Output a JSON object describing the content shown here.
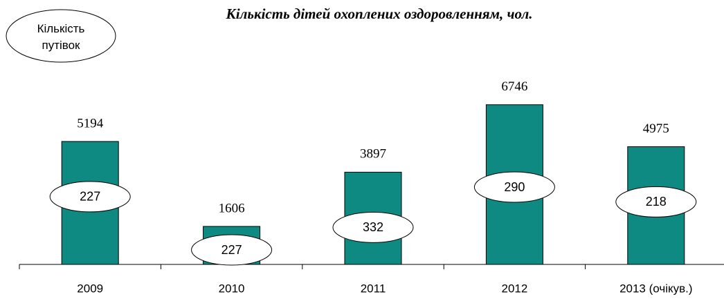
{
  "chart_data": {
    "type": "bar",
    "title": "Кількість дітей охоплених оздоровленням, чол.",
    "categories": [
      "2009",
      "2010",
      "2011",
      "2012",
      "2013 (очікув.)"
    ],
    "series": [
      {
        "color": "#0e8a82",
        "values": [
          5194,
          1606,
          3897,
          6746,
          4975
        ]
      },
      {
        "name": "Кількість путівок",
        "color": "#ffffff",
        "values": [
          227,
          227,
          332,
          290,
          218
        ]
      }
    ],
    "ylim": [
      0,
      7000
    ]
  }
}
